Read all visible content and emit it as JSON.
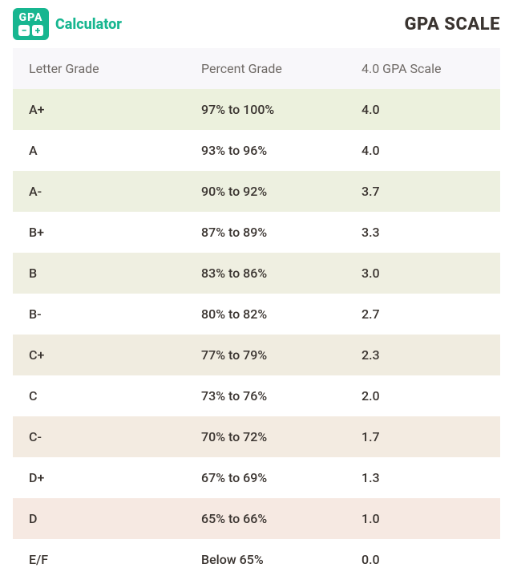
{
  "brand": {
    "logo_label": "GPA",
    "name": "Calculator"
  },
  "page_title": "GPA SCALE",
  "table": {
    "headers": [
      "Letter Grade",
      "Percent Grade",
      "4.0 GPA Scale"
    ],
    "rows": [
      {
        "letter": "A+",
        "percent": "97% to 100%",
        "gpa": "4.0",
        "bg": "#ecf1dd"
      },
      {
        "letter": "A",
        "percent": "93% to 96%",
        "gpa": "4.0",
        "bg": "#ffffff"
      },
      {
        "letter": "A-",
        "percent": "90% to 92%",
        "gpa": "3.7",
        "bg": "#edf0e0"
      },
      {
        "letter": "B+",
        "percent": "87% to 89%",
        "gpa": "3.3",
        "bg": "#ffffff"
      },
      {
        "letter": "B",
        "percent": "83% to 86%",
        "gpa": "3.0",
        "bg": "#efefe1"
      },
      {
        "letter": "B-",
        "percent": "80% to 82%",
        "gpa": "2.7",
        "bg": "#ffffff"
      },
      {
        "letter": "C+",
        "percent": "77% to 79%",
        "gpa": "2.3",
        "bg": "#f0ece0"
      },
      {
        "letter": "C",
        "percent": "73% to 76%",
        "gpa": "2.0",
        "bg": "#ffffff"
      },
      {
        "letter": "C-",
        "percent": "70% to 72%",
        "gpa": "1.7",
        "bg": "#f3ebe1"
      },
      {
        "letter": "D+",
        "percent": "67% to 69%",
        "gpa": "1.3",
        "bg": "#ffffff"
      },
      {
        "letter": "D",
        "percent": "65% to 66%",
        "gpa": "1.0",
        "bg": "#f6e9e2"
      },
      {
        "letter": "E/F",
        "percent": "Below 65%",
        "gpa": "0.0",
        "bg": "#ffffff"
      }
    ]
  },
  "colors": {
    "brand": "#17b690",
    "header_bg": "#f8f7fa",
    "text_primary": "#3a3430",
    "text_muted": "#6f6a66"
  }
}
